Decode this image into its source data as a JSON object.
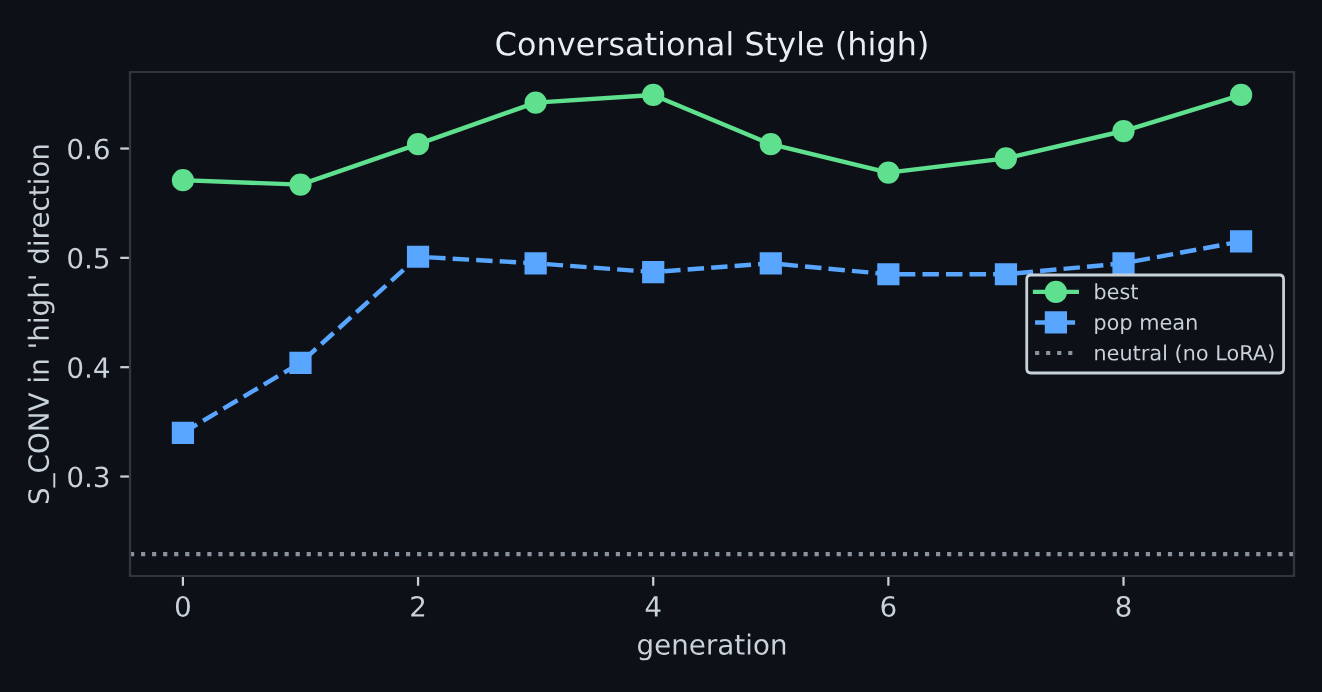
{
  "chart_data": {
    "type": "line",
    "title": "Conversational Style (high)",
    "xlabel": "generation",
    "ylabel": "S_CONV in 'high' direction",
    "x": [
      0,
      1,
      2,
      3,
      4,
      5,
      6,
      7,
      8,
      9
    ],
    "series": [
      {
        "name": "best",
        "color": "#5fe08f",
        "marker": "circle",
        "line_style": "solid",
        "values": [
          0.571,
          0.567,
          0.604,
          0.642,
          0.649,
          0.604,
          0.578,
          0.591,
          0.616,
          0.649
        ]
      },
      {
        "name": "pop mean",
        "color": "#58a6ff",
        "marker": "square",
        "line_style": "dashed",
        "values": [
          0.34,
          0.404,
          0.501,
          0.495,
          0.487,
          0.495,
          0.485,
          0.485,
          0.495,
          0.515
        ]
      }
    ],
    "ref_lines": [
      {
        "axis": "y",
        "value": 0.229,
        "label": "neutral (no LoRA)",
        "color": "#8b949e",
        "line_style": "dotted"
      }
    ],
    "xlim": [
      -0.45,
      9.45
    ],
    "ylim": [
      0.209,
      0.67
    ],
    "xticks": [
      0,
      2,
      4,
      6,
      8
    ],
    "yticks": [
      0.3,
      0.4,
      0.5,
      0.6
    ],
    "grid": false,
    "legend": "right"
  }
}
